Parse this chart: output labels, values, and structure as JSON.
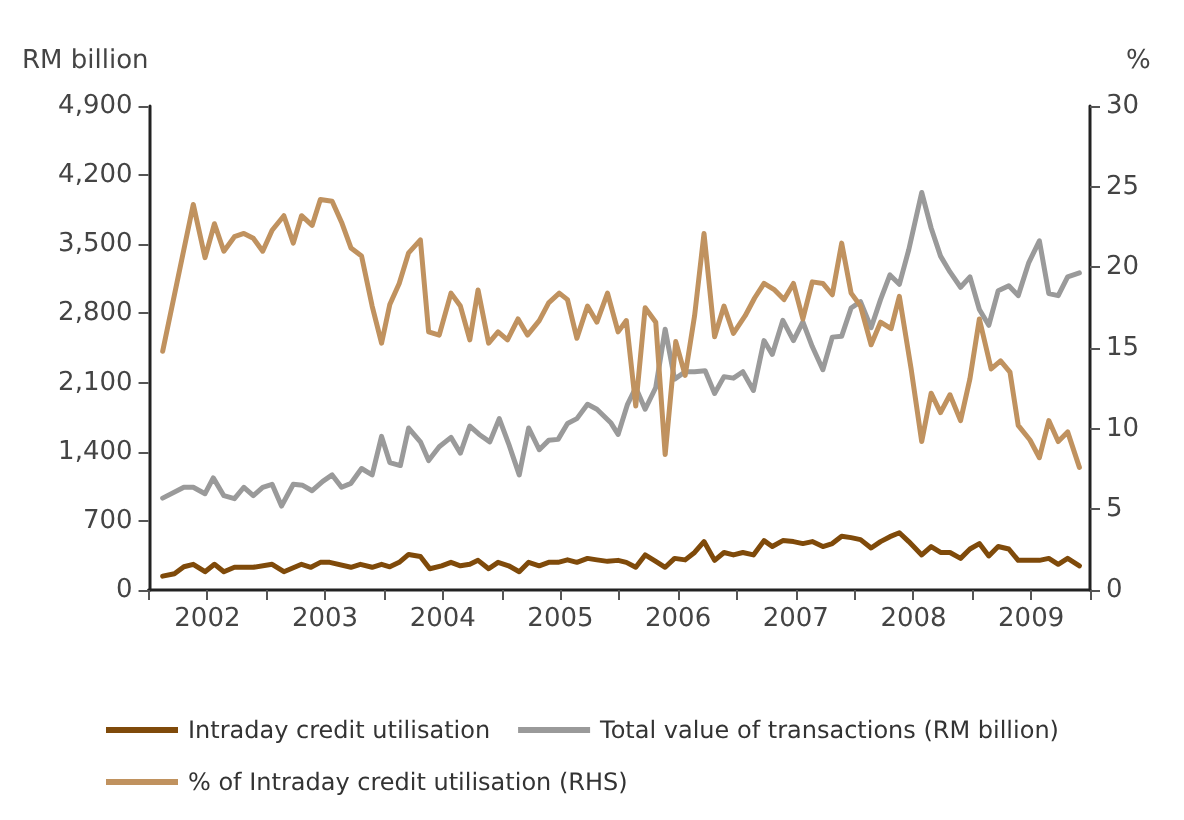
{
  "chart_data": {
    "type": "line",
    "ylabel": "RM billion",
    "y2label": "%",
    "xlim": [
      2002,
      2010
    ],
    "xticks": [
      {
        "value": 2002,
        "label": null
      },
      {
        "value": 2002.5,
        "label": "2002"
      },
      {
        "value": 2003,
        "label": null
      },
      {
        "value": 2003.5,
        "label": "2003"
      },
      {
        "value": 2004,
        "label": null
      },
      {
        "value": 2004.5,
        "label": "2004"
      },
      {
        "value": 2005,
        "label": null
      },
      {
        "value": 2005.5,
        "label": "2005"
      },
      {
        "value": 2006,
        "label": null
      },
      {
        "value": 2006.5,
        "label": "2006"
      },
      {
        "value": 2007,
        "label": null
      },
      {
        "value": 2007.5,
        "label": "2007"
      },
      {
        "value": 2008,
        "label": null
      },
      {
        "value": 2008.5,
        "label": "2008"
      },
      {
        "value": 2009,
        "label": null
      },
      {
        "value": 2009.5,
        "label": "2009"
      },
      {
        "value": 2010,
        "label": null
      }
    ],
    "ylim": [
      0,
      4900
    ],
    "yticks": [
      0,
      {
        "value": 700,
        "label": "700"
      },
      {
        "value": 1400,
        "label": "1,400"
      },
      {
        "value": 2100,
        "label": "2,100"
      },
      {
        "value": 2800,
        "label": "2,800"
      },
      {
        "value": 3500,
        "label": "3,500"
      },
      {
        "value": 4200,
        "label": "4,200"
      },
      {
        "value": 4900,
        "label": "4,900"
      }
    ],
    "y2lim": [
      0,
      30
    ],
    "y2ticks": [
      0,
      5,
      10,
      15,
      20,
      25,
      30
    ],
    "grid": false,
    "legend": "bottom",
    "marker": "none",
    "line_style": "solid",
    "series": [
      {
        "name": "Intraday credit utilisation",
        "color": "#7f4a0a",
        "x": [
          2002.12,
          2002.22,
          2002.3,
          2002.38,
          2002.48,
          2002.56,
          2002.64,
          2002.73,
          2002.89,
          2003.05,
          2003.15,
          2003.3,
          2003.38,
          2003.46,
          2003.54,
          2003.72,
          2003.8,
          2003.9,
          2003.98,
          2004.05,
          2004.13,
          2004.21,
          2004.31,
          2004.39,
          2004.49,
          2004.57,
          2004.65,
          2004.73,
          2004.8,
          2004.89,
          2004.97,
          2005.06,
          2005.15,
          2005.23,
          2005.32,
          2005.4,
          2005.48,
          2005.56,
          2005.64,
          2005.73,
          2005.81,
          2005.9,
          2005.99,
          2006.06,
          2006.14,
          2006.22,
          2006.31,
          2006.39,
          2006.47,
          2006.56,
          2006.64,
          2006.72,
          2006.81,
          2006.89,
          2006.97,
          2007.05,
          2007.14,
          2007.23,
          2007.3,
          2007.39,
          2007.48,
          2007.56,
          2007.64,
          2007.73,
          2007.81,
          2007.89,
          2007.97,
          2008.05,
          2008.14,
          2008.22,
          2008.3,
          2008.38,
          2008.46,
          2008.57,
          2008.65,
          2008.73,
          2008.81,
          2008.9,
          2008.98,
          2009.06,
          2009.14,
          2009.22,
          2009.31,
          2009.39,
          2009.48,
          2009.57,
          2009.65,
          2009.73,
          2009.81,
          2009.91
        ],
        "values": [
          140,
          165,
          235,
          260,
          185,
          260,
          185,
          230,
          230,
          260,
          185,
          260,
          230,
          280,
          280,
          230,
          260,
          230,
          260,
          235,
          280,
          360,
          340,
          215,
          245,
          280,
          245,
          260,
          300,
          215,
          280,
          245,
          185,
          280,
          245,
          280,
          280,
          305,
          280,
          320,
          305,
          290,
          300,
          280,
          230,
          355,
          290,
          230,
          320,
          305,
          380,
          490,
          300,
          380,
          355,
          380,
          355,
          500,
          440,
          500,
          490,
          470,
          490,
          440,
          470,
          545,
          530,
          510,
          425,
          490,
          540,
          580,
          490,
          355,
          440,
          380,
          380,
          320,
          415,
          470,
          345,
          440,
          415,
          300,
          300,
          300,
          320,
          260,
          320,
          245
        ]
      },
      {
        "name": "Total value of transactions (RM billion)",
        "color": "#9a9a9a",
        "x": [
          2002.12,
          2002.3,
          2002.38,
          2002.48,
          2002.55,
          2002.64,
          2002.73,
          2002.81,
          2002.89,
          2002.97,
          2003.05,
          2003.13,
          2003.23,
          2003.31,
          2003.39,
          2003.48,
          2003.56,
          2003.64,
          2003.72,
          2003.81,
          2003.9,
          2003.98,
          2004.05,
          2004.14,
          2004.21,
          2004.31,
          2004.38,
          2004.47,
          2004.57,
          2004.65,
          2004.73,
          2004.81,
          2004.9,
          2004.98,
          2005.06,
          2005.15,
          2005.23,
          2005.32,
          2005.4,
          2005.48,
          2005.56,
          2005.64,
          2005.73,
          2005.81,
          2005.93,
          2005.99,
          2006.07,
          2006.14,
          2006.22,
          2006.31,
          2006.39,
          2006.47,
          2006.56,
          2006.64,
          2006.73,
          2006.81,
          2006.89,
          2006.97,
          2007.05,
          2007.14,
          2007.23,
          2007.3,
          2007.39,
          2007.48,
          2007.56,
          2007.64,
          2007.73,
          2007.81,
          2007.89,
          2007.97,
          2008.05,
          2008.14,
          2008.22,
          2008.3,
          2008.38,
          2008.46,
          2008.57,
          2008.65,
          2008.73,
          2008.81,
          2008.9,
          2008.98,
          2009.06,
          2009.14,
          2009.22,
          2009.31,
          2009.39,
          2009.48,
          2009.57,
          2009.65,
          2009.73,
          2009.81,
          2009.91
        ],
        "values": [
          930,
          1040,
          1040,
          975,
          1135,
          955,
          925,
          1040,
          955,
          1040,
          1070,
          850,
          1070,
          1060,
          1005,
          1100,
          1165,
          1040,
          1080,
          1230,
          1165,
          1555,
          1290,
          1260,
          1640,
          1500,
          1310,
          1450,
          1545,
          1385,
          1660,
          1575,
          1500,
          1735,
          1480,
          1165,
          1640,
          1420,
          1515,
          1525,
          1685,
          1735,
          1880,
          1830,
          1690,
          1575,
          1880,
          2050,
          1830,
          2050,
          2640,
          2135,
          2210,
          2210,
          2220,
          1990,
          2160,
          2145,
          2210,
          2020,
          2525,
          2385,
          2730,
          2525,
          2715,
          2465,
          2230,
          2560,
          2570,
          2855,
          2920,
          2655,
          2940,
          3190,
          3095,
          3445,
          4025,
          3665,
          3380,
          3220,
          3065,
          3170,
          2840,
          2680,
          3030,
          3080,
          2980,
          3315,
          3535,
          3000,
          2980,
          3170,
          3210
        ]
      },
      {
        "name": "% of Intraday credit utilisation (RHS)",
        "color": "#c0925f",
        "axis": "y2",
        "x": [
          2002.12,
          2002.38,
          2002.48,
          2002.56,
          2002.64,
          2002.73,
          2002.81,
          2002.89,
          2002.97,
          2003.05,
          2003.15,
          2003.23,
          2003.3,
          2003.39,
          2003.46,
          2003.56,
          2003.64,
          2003.72,
          2003.81,
          2003.9,
          2003.98,
          2004.05,
          2004.13,
          2004.21,
          2004.31,
          2004.38,
          2004.47,
          2004.57,
          2004.65,
          2004.73,
          2004.8,
          2004.89,
          2004.97,
          2005.05,
          2005.14,
          2005.22,
          2005.32,
          2005.4,
          2005.49,
          2005.56,
          2005.64,
          2005.73,
          2005.81,
          2005.9,
          2005.99,
          2006.06,
          2006.14,
          2006.22,
          2006.31,
          2006.39,
          2006.48,
          2006.56,
          2006.64,
          2006.72,
          2006.81,
          2006.89,
          2006.97,
          2007.07,
          2007.15,
          2007.23,
          2007.32,
          2007.4,
          2007.48,
          2007.56,
          2007.64,
          2007.73,
          2007.81,
          2007.89,
          2007.97,
          2008.05,
          2008.14,
          2008.22,
          2008.31,
          2008.38,
          2008.48,
          2008.57,
          2008.65,
          2008.73,
          2008.81,
          2008.9,
          2008.98,
          2009.06,
          2009.16,
          2009.24,
          2009.32,
          2009.39,
          2009.49,
          2009.57,
          2009.65,
          2009.73,
          2009.81,
          2009.91
        ],
        "values": [
          14.8,
          23.9,
          20.6,
          22.7,
          21.0,
          21.9,
          22.1,
          21.8,
          21.0,
          22.3,
          23.2,
          21.5,
          23.2,
          22.6,
          24.2,
          24.1,
          22.8,
          21.2,
          20.7,
          17.6,
          15.3,
          17.7,
          19.0,
          20.9,
          21.7,
          16.0,
          15.8,
          18.4,
          17.6,
          15.5,
          18.6,
          15.3,
          16.0,
          15.5,
          16.8,
          15.8,
          16.7,
          17.8,
          18.4,
          18.0,
          15.6,
          17.6,
          16.6,
          18.4,
          16.0,
          16.7,
          11.4,
          17.5,
          16.6,
          8.4,
          15.4,
          13.3,
          17.0,
          22.1,
          15.7,
          17.6,
          15.9,
          17.0,
          18.1,
          19.0,
          18.6,
          18.0,
          19.0,
          16.8,
          19.1,
          19.0,
          18.3,
          21.5,
          18.4,
          17.6,
          15.2,
          16.6,
          16.2,
          18.2,
          13.7,
          9.2,
          12.2,
          11.0,
          12.1,
          10.5,
          13.1,
          16.8,
          13.7,
          14.2,
          13.5,
          10.2,
          9.3,
          8.2,
          10.5,
          9.2,
          9.8,
          7.6
        ]
      }
    ]
  }
}
